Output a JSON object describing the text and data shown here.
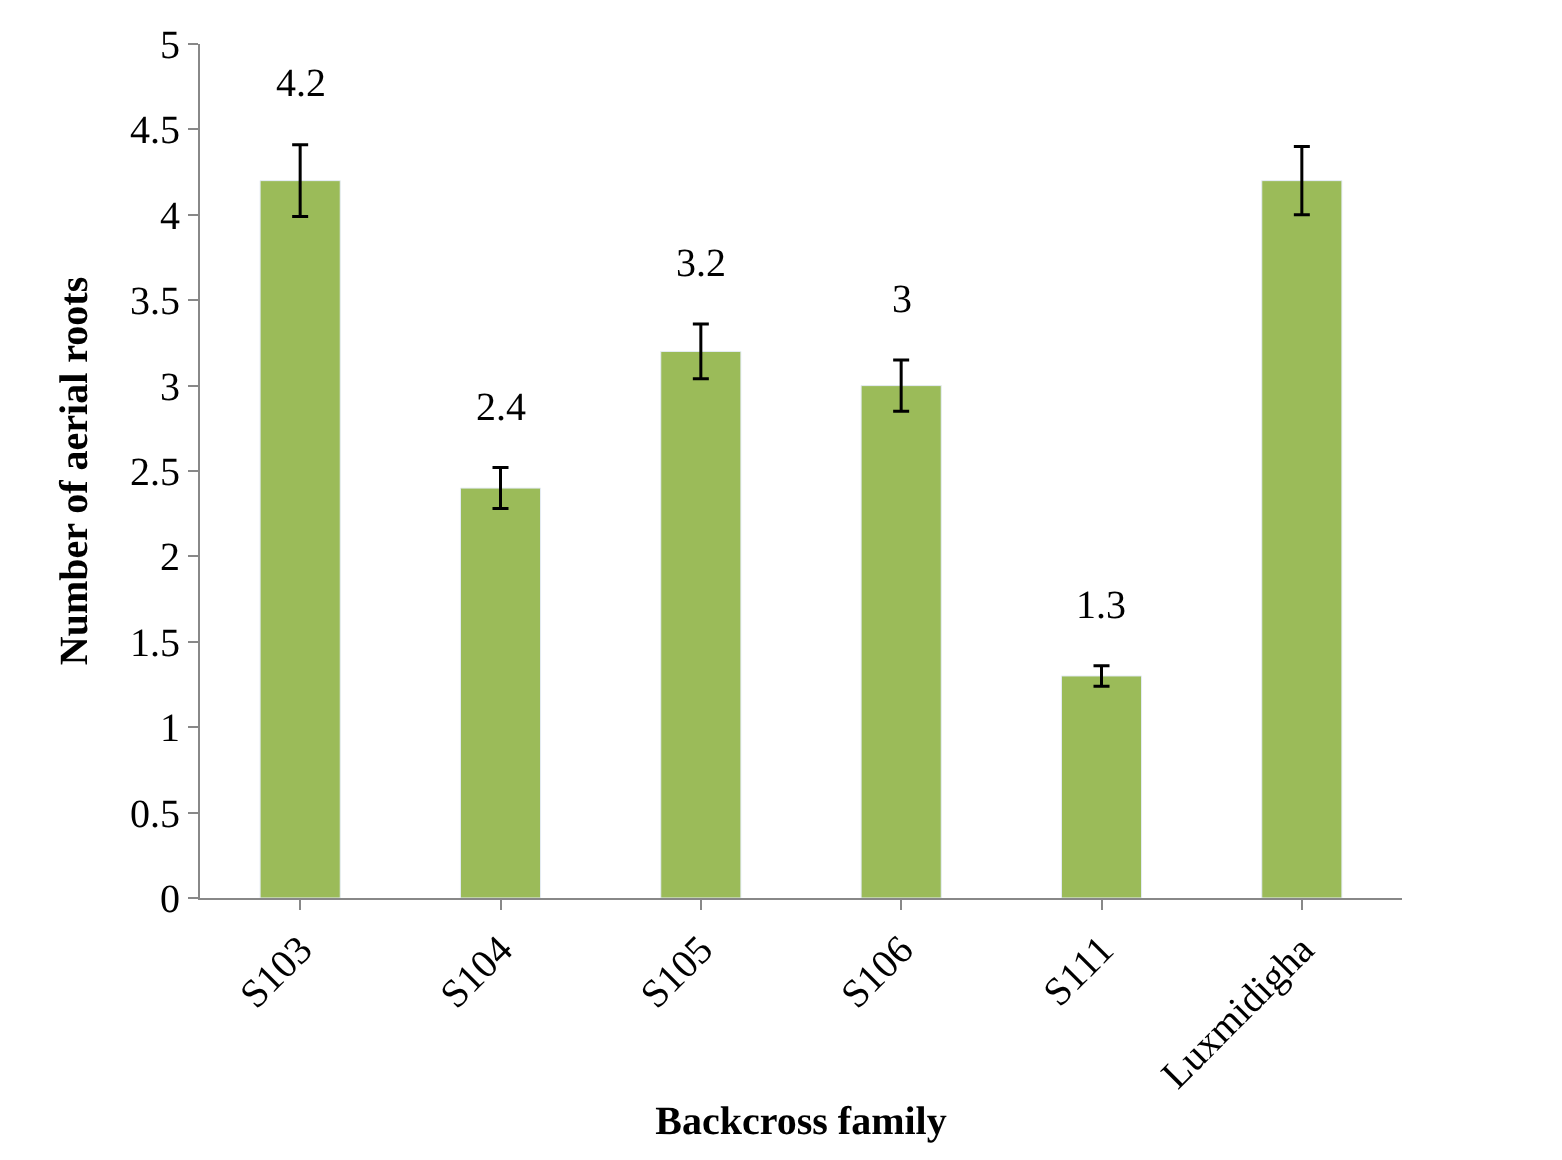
{
  "chart_data": {
    "type": "bar",
    "xlabel": "Backcross family",
    "ylabel": "Number of aerial roots",
    "categories": [
      "S103",
      "S104",
      "S105",
      "S106",
      "S111",
      "Luxmidigha"
    ],
    "values": [
      4.2,
      2.4,
      3.2,
      3,
      1.3,
      4.2
    ],
    "errors": [
      0.21,
      0.12,
      0.16,
      0.15,
      0.06,
      0.2
    ],
    "value_labels": [
      "4.2",
      "2.4",
      "3.2",
      "3",
      "1.3",
      null
    ],
    "color": "#9bbb59",
    "ylim": [
      0,
      5
    ],
    "yticks": [
      0,
      0.5,
      1,
      1.5,
      2,
      2.5,
      3,
      3.5,
      4,
      4.5,
      5
    ]
  }
}
